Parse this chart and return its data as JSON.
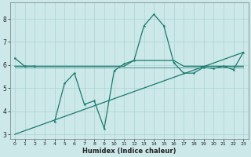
{
  "xlabel": "Humidex (Indice chaleur)",
  "x_values": [
    0,
    1,
    2,
    3,
    4,
    5,
    6,
    7,
    8,
    9,
    10,
    11,
    12,
    13,
    14,
    15,
    16,
    17,
    18,
    19,
    20,
    21,
    22,
    23
  ],
  "line1_y": [
    6.3,
    5.95,
    5.95,
    null,
    3.55,
    5.2,
    5.65,
    4.3,
    4.45,
    3.25,
    5.75,
    6.05,
    6.2,
    7.7,
    8.2,
    7.7,
    6.1,
    5.65,
    5.65,
    5.9,
    5.85,
    5.95,
    5.8,
    6.55
  ],
  "line2_y": [
    5.95,
    5.95,
    5.95,
    5.95,
    5.95,
    5.95,
    5.95,
    5.95,
    5.95,
    5.95,
    5.95,
    5.95,
    6.2,
    6.2,
    6.2,
    6.2,
    6.2,
    5.95,
    5.95,
    5.95,
    5.95,
    5.95,
    5.95,
    5.95
  ],
  "line2b_y": [
    5.88,
    5.88,
    5.88,
    5.88,
    5.88,
    5.88,
    5.88,
    5.88,
    5.88,
    5.88,
    5.88,
    5.88,
    5.88,
    5.88,
    5.88,
    5.88,
    5.88,
    5.88,
    5.88,
    5.88,
    5.88,
    5.88,
    5.88,
    5.88
  ],
  "line3_x": [
    0,
    23
  ],
  "line3_y": [
    3.0,
    6.55
  ],
  "bg_color": "#cce8e8",
  "grid_color": "#aad4d4",
  "line_color": "#1a7a6e",
  "ylim": [
    2.8,
    8.7
  ],
  "xlim": [
    -0.5,
    23.5
  ],
  "yticks": [
    3,
    4,
    5,
    6,
    7,
    8
  ],
  "xticks": [
    0,
    1,
    2,
    3,
    4,
    5,
    6,
    7,
    8,
    9,
    10,
    11,
    12,
    13,
    14,
    15,
    16,
    17,
    18,
    19,
    20,
    21,
    22,
    23
  ],
  "xlabel_fontsize": 6.0,
  "tick_fontsize": 5.0,
  "linewidth": 0.9,
  "marker_size": 3.0
}
